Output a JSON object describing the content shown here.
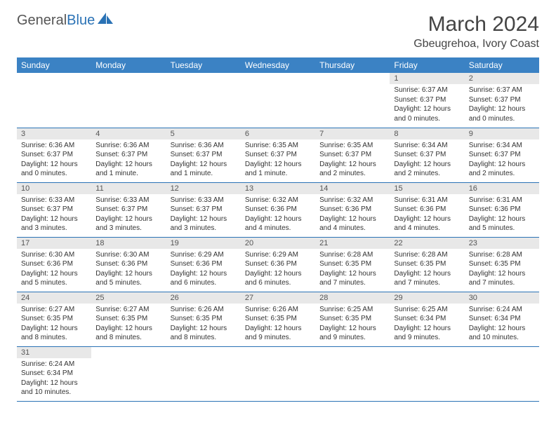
{
  "brand": {
    "part1": "General",
    "part2": "Blue"
  },
  "title": "March 2024",
  "location": "Gbeugrehoa, Ivory Coast",
  "colors": {
    "header_bg": "#3b82c4",
    "header_text": "#ffffff",
    "rule": "#2a72b5",
    "daynum_bg": "#e8e8e8",
    "text": "#333333",
    "brand_gray": "#555555",
    "brand_blue": "#2a72b5",
    "page_bg": "#ffffff"
  },
  "typography": {
    "title_fontsize": 30,
    "location_fontsize": 16,
    "dayheader_fontsize": 12,
    "daynum_fontsize": 11,
    "body_fontsize": 10,
    "font_family": "Arial"
  },
  "layout": {
    "columns": 7,
    "rows": 6,
    "first_day_column": 5
  },
  "day_headers": [
    "Sunday",
    "Monday",
    "Tuesday",
    "Wednesday",
    "Thursday",
    "Friday",
    "Saturday"
  ],
  "days": [
    {
      "n": "1",
      "sunrise": "Sunrise: 6:37 AM",
      "sunset": "Sunset: 6:37 PM",
      "daylight": "Daylight: 12 hours and 0 minutes."
    },
    {
      "n": "2",
      "sunrise": "Sunrise: 6:37 AM",
      "sunset": "Sunset: 6:37 PM",
      "daylight": "Daylight: 12 hours and 0 minutes."
    },
    {
      "n": "3",
      "sunrise": "Sunrise: 6:36 AM",
      "sunset": "Sunset: 6:37 PM",
      "daylight": "Daylight: 12 hours and 0 minutes."
    },
    {
      "n": "4",
      "sunrise": "Sunrise: 6:36 AM",
      "sunset": "Sunset: 6:37 PM",
      "daylight": "Daylight: 12 hours and 1 minute."
    },
    {
      "n": "5",
      "sunrise": "Sunrise: 6:36 AM",
      "sunset": "Sunset: 6:37 PM",
      "daylight": "Daylight: 12 hours and 1 minute."
    },
    {
      "n": "6",
      "sunrise": "Sunrise: 6:35 AM",
      "sunset": "Sunset: 6:37 PM",
      "daylight": "Daylight: 12 hours and 1 minute."
    },
    {
      "n": "7",
      "sunrise": "Sunrise: 6:35 AM",
      "sunset": "Sunset: 6:37 PM",
      "daylight": "Daylight: 12 hours and 2 minutes."
    },
    {
      "n": "8",
      "sunrise": "Sunrise: 6:34 AM",
      "sunset": "Sunset: 6:37 PM",
      "daylight": "Daylight: 12 hours and 2 minutes."
    },
    {
      "n": "9",
      "sunrise": "Sunrise: 6:34 AM",
      "sunset": "Sunset: 6:37 PM",
      "daylight": "Daylight: 12 hours and 2 minutes."
    },
    {
      "n": "10",
      "sunrise": "Sunrise: 6:33 AM",
      "sunset": "Sunset: 6:37 PM",
      "daylight": "Daylight: 12 hours and 3 minutes."
    },
    {
      "n": "11",
      "sunrise": "Sunrise: 6:33 AM",
      "sunset": "Sunset: 6:37 PM",
      "daylight": "Daylight: 12 hours and 3 minutes."
    },
    {
      "n": "12",
      "sunrise": "Sunrise: 6:33 AM",
      "sunset": "Sunset: 6:37 PM",
      "daylight": "Daylight: 12 hours and 3 minutes."
    },
    {
      "n": "13",
      "sunrise": "Sunrise: 6:32 AM",
      "sunset": "Sunset: 6:36 PM",
      "daylight": "Daylight: 12 hours and 4 minutes."
    },
    {
      "n": "14",
      "sunrise": "Sunrise: 6:32 AM",
      "sunset": "Sunset: 6:36 PM",
      "daylight": "Daylight: 12 hours and 4 minutes."
    },
    {
      "n": "15",
      "sunrise": "Sunrise: 6:31 AM",
      "sunset": "Sunset: 6:36 PM",
      "daylight": "Daylight: 12 hours and 4 minutes."
    },
    {
      "n": "16",
      "sunrise": "Sunrise: 6:31 AM",
      "sunset": "Sunset: 6:36 PM",
      "daylight": "Daylight: 12 hours and 5 minutes."
    },
    {
      "n": "17",
      "sunrise": "Sunrise: 6:30 AM",
      "sunset": "Sunset: 6:36 PM",
      "daylight": "Daylight: 12 hours and 5 minutes."
    },
    {
      "n": "18",
      "sunrise": "Sunrise: 6:30 AM",
      "sunset": "Sunset: 6:36 PM",
      "daylight": "Daylight: 12 hours and 5 minutes."
    },
    {
      "n": "19",
      "sunrise": "Sunrise: 6:29 AM",
      "sunset": "Sunset: 6:36 PM",
      "daylight": "Daylight: 12 hours and 6 minutes."
    },
    {
      "n": "20",
      "sunrise": "Sunrise: 6:29 AM",
      "sunset": "Sunset: 6:36 PM",
      "daylight": "Daylight: 12 hours and 6 minutes."
    },
    {
      "n": "21",
      "sunrise": "Sunrise: 6:28 AM",
      "sunset": "Sunset: 6:35 PM",
      "daylight": "Daylight: 12 hours and 7 minutes."
    },
    {
      "n": "22",
      "sunrise": "Sunrise: 6:28 AM",
      "sunset": "Sunset: 6:35 PM",
      "daylight": "Daylight: 12 hours and 7 minutes."
    },
    {
      "n": "23",
      "sunrise": "Sunrise: 6:28 AM",
      "sunset": "Sunset: 6:35 PM",
      "daylight": "Daylight: 12 hours and 7 minutes."
    },
    {
      "n": "24",
      "sunrise": "Sunrise: 6:27 AM",
      "sunset": "Sunset: 6:35 PM",
      "daylight": "Daylight: 12 hours and 8 minutes."
    },
    {
      "n": "25",
      "sunrise": "Sunrise: 6:27 AM",
      "sunset": "Sunset: 6:35 PM",
      "daylight": "Daylight: 12 hours and 8 minutes."
    },
    {
      "n": "26",
      "sunrise": "Sunrise: 6:26 AM",
      "sunset": "Sunset: 6:35 PM",
      "daylight": "Daylight: 12 hours and 8 minutes."
    },
    {
      "n": "27",
      "sunrise": "Sunrise: 6:26 AM",
      "sunset": "Sunset: 6:35 PM",
      "daylight": "Daylight: 12 hours and 9 minutes."
    },
    {
      "n": "28",
      "sunrise": "Sunrise: 6:25 AM",
      "sunset": "Sunset: 6:35 PM",
      "daylight": "Daylight: 12 hours and 9 minutes."
    },
    {
      "n": "29",
      "sunrise": "Sunrise: 6:25 AM",
      "sunset": "Sunset: 6:34 PM",
      "daylight": "Daylight: 12 hours and 9 minutes."
    },
    {
      "n": "30",
      "sunrise": "Sunrise: 6:24 AM",
      "sunset": "Sunset: 6:34 PM",
      "daylight": "Daylight: 12 hours and 10 minutes."
    },
    {
      "n": "31",
      "sunrise": "Sunrise: 6:24 AM",
      "sunset": "Sunset: 6:34 PM",
      "daylight": "Daylight: 12 hours and 10 minutes."
    }
  ]
}
